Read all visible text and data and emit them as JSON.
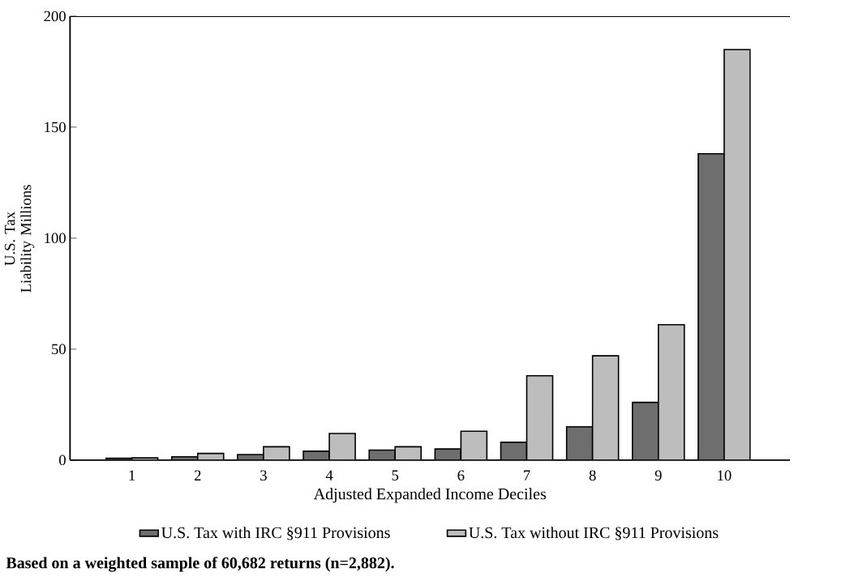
{
  "chart_data": {
    "type": "bar",
    "xlabel": "Adjusted Expanded Income Deciles",
    "ylabel": "U.S. Tax Liability Millions",
    "categories": [
      "1",
      "2",
      "3",
      "4",
      "5",
      "6",
      "7",
      "8",
      "9",
      "10"
    ],
    "series": [
      {
        "name": "U.S. Tax with IRC §911 Provisions",
        "color": "#6e6e6e",
        "values": [
          0.8,
          1.5,
          2.5,
          4,
          4.5,
          5,
          8,
          15,
          26,
          138
        ]
      },
      {
        "name": "U.S. Tax without IRC §911 Provisions",
        "color": "#bdbdbd",
        "values": [
          1,
          3,
          6,
          12,
          6,
          13,
          38,
          47,
          61,
          185
        ]
      }
    ],
    "ylim": [
      0,
      200
    ],
    "yticks": [
      0,
      50,
      100,
      150,
      200
    ],
    "grid": false,
    "legend": "bottom",
    "annotations": [
      "Based on a weighted sample of 60,682 returns (n=2,882)."
    ]
  }
}
